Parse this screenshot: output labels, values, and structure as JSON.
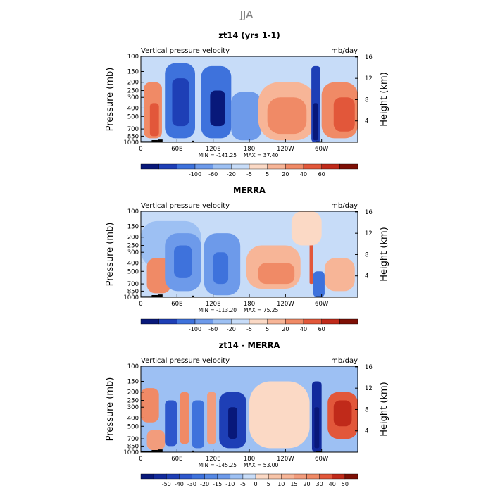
{
  "season_title": "JJA",
  "chart_data": [
    {
      "type": "heatmap",
      "title": "zt14 (yrs 1-1)",
      "left_string": "Vertical pressure velocity",
      "right_string": "mb/day",
      "ylabel": "Pressure (mb)",
      "ylabel_right": "Height (km)",
      "x_ticks": [
        "0",
        "60E",
        "120E",
        "180",
        "120W",
        "60W"
      ],
      "x_tick_lons": [
        0,
        60,
        120,
        180,
        240,
        300
      ],
      "xlim": [
        0,
        360
      ],
      "p_ticks": [
        100,
        150,
        200,
        250,
        300,
        400,
        500,
        700,
        850,
        1000
      ],
      "p_tick_labels": [
        "100",
        "150",
        "200",
        "250",
        "300",
        "400",
        "500",
        "700",
        "850",
        "1000"
      ],
      "ylim": [
        1000,
        100
      ],
      "height_ticks": [
        "4",
        "8",
        "12",
        "16"
      ],
      "height_tick_values": [
        4,
        8,
        12,
        16
      ],
      "min_label": "MIN = -141.25",
      "max_label": "MAX =  37.40",
      "levels": [
        "-100",
        "-60",
        "-20",
        "-5",
        "5",
        "20",
        "40",
        "60"
      ],
      "colors": [
        "#08187a",
        "#1e3fb6",
        "#3e72dc",
        "#6d9aea",
        "#9dc0f3",
        "#c7dcf8",
        "#fbd9c5",
        "#f7b597",
        "#f08a66",
        "#e2573a",
        "#c02a1a",
        "#7e0f05"
      ],
      "cells": [
        {
          "lon": [
            5,
            35
          ],
          "p": [
            200,
            900
          ],
          "class": 8
        },
        {
          "lon": [
            15,
            30
          ],
          "p": [
            350,
            850
          ],
          "class": 9
        },
        {
          "lon": [
            40,
            90
          ],
          "p": [
            120,
            900
          ],
          "class": 2
        },
        {
          "lon": [
            52,
            80
          ],
          "p": [
            180,
            650
          ],
          "class": 1
        },
        {
          "lon": [
            100,
            150
          ],
          "p": [
            130,
            900
          ],
          "class": 2
        },
        {
          "lon": [
            115,
            140
          ],
          "p": [
            250,
            650
          ],
          "class": 0
        },
        {
          "lon": [
            150,
            200
          ],
          "p": [
            260,
            950
          ],
          "class": 3
        },
        {
          "lon": [
            195,
            290
          ],
          "p": [
            200,
            950
          ],
          "class": 7
        },
        {
          "lon": [
            210,
            275
          ],
          "p": [
            300,
            800
          ],
          "class": 8
        },
        {
          "lon": [
            283,
            298
          ],
          "p": [
            130,
            1000
          ],
          "class": 1
        },
        {
          "lon": [
            286,
            294
          ],
          "p": [
            350,
            950
          ],
          "class": 0
        },
        {
          "lon": [
            300,
            360
          ],
          "p": [
            200,
            900
          ],
          "class": 8
        },
        {
          "lon": [
            320,
            355
          ],
          "p": [
            300,
            750
          ],
          "class": 9
        }
      ]
    },
    {
      "type": "heatmap",
      "title": "MERRA",
      "left_string": "Vertical pressure velocity",
      "right_string": "mb/day",
      "ylabel": "Pressure (mb)",
      "ylabel_right": "Height (km)",
      "x_ticks": [
        "0",
        "60E",
        "120E",
        "180",
        "120W",
        "60W"
      ],
      "x_tick_lons": [
        0,
        60,
        120,
        180,
        240,
        300
      ],
      "xlim": [
        0,
        360
      ],
      "p_ticks": [
        100,
        150,
        200,
        250,
        300,
        400,
        500,
        700,
        850,
        1000
      ],
      "p_tick_labels": [
        "100",
        "150",
        "200",
        "250",
        "300",
        "400",
        "500",
        "700",
        "850",
        "1000"
      ],
      "ylim": [
        1000,
        100
      ],
      "height_ticks": [
        "4",
        "8",
        "12",
        "16"
      ],
      "height_tick_values": [
        4,
        8,
        12,
        16
      ],
      "min_label": "MIN = -113.20",
      "max_label": "MAX =  75.25",
      "levels": [
        "-100",
        "-60",
        "-20",
        "-5",
        "5",
        "20",
        "40",
        "60"
      ],
      "colors": [
        "#08187a",
        "#1e3fb6",
        "#3e72dc",
        "#6d9aea",
        "#9dc0f3",
        "#c7dcf8",
        "#fbd9c5",
        "#f7b597",
        "#f08a66",
        "#e2573a",
        "#c02a1a",
        "#7e0f05"
      ],
      "cells": [
        {
          "lon": [
            0,
            100
          ],
          "p": [
            130,
            450
          ],
          "class": 4
        },
        {
          "lon": [
            10,
            50
          ],
          "p": [
            350,
            900
          ],
          "class": 8
        },
        {
          "lon": [
            40,
            100
          ],
          "p": [
            180,
            850
          ],
          "class": 3
        },
        {
          "lon": [
            55,
            85
          ],
          "p": [
            250,
            600
          ],
          "class": 2
        },
        {
          "lon": [
            105,
            165
          ],
          "p": [
            180,
            950
          ],
          "class": 3
        },
        {
          "lon": [
            120,
            145
          ],
          "p": [
            300,
            700
          ],
          "class": 2
        },
        {
          "lon": [
            175,
            265
          ],
          "p": [
            250,
            800
          ],
          "class": 7
        },
        {
          "lon": [
            195,
            255
          ],
          "p": [
            400,
            700
          ],
          "class": 8
        },
        {
          "lon": [
            280,
            286
          ],
          "p": [
            180,
            700
          ],
          "class": 9
        },
        {
          "lon": [
            286,
            305
          ],
          "p": [
            500,
            1000
          ],
          "class": 2
        },
        {
          "lon": [
            305,
            355
          ],
          "p": [
            350,
            850
          ],
          "class": 7
        },
        {
          "lon": [
            250,
            300
          ],
          "p": [
            100,
            250
          ],
          "class": 6
        }
      ]
    },
    {
      "type": "heatmap",
      "title": "zt14 - MERRA",
      "left_string": "Vertical pressure velocity",
      "right_string": "mb/day",
      "ylabel": "Pressure (mb)",
      "ylabel_right": "Height (km)",
      "x_ticks": [
        "0",
        "60E",
        "120E",
        "180",
        "120W",
        "60W"
      ],
      "x_tick_lons": [
        0,
        60,
        120,
        180,
        240,
        300
      ],
      "xlim": [
        0,
        360
      ],
      "p_ticks": [
        100,
        150,
        200,
        250,
        300,
        400,
        500,
        700,
        850,
        1000
      ],
      "p_tick_labels": [
        "100",
        "150",
        "200",
        "250",
        "300",
        "400",
        "500",
        "700",
        "850",
        "1000"
      ],
      "ylim": [
        1000,
        100
      ],
      "height_ticks": [
        "4",
        "8",
        "12",
        "16"
      ],
      "height_tick_values": [
        4,
        8,
        12,
        16
      ],
      "min_label": "MIN = -145.25",
      "max_label": "MAX =  53.00",
      "levels": [
        "-50",
        "-40",
        "-30",
        "-20",
        "-15",
        "-10",
        "-5",
        "0",
        "5",
        "10",
        "15",
        "20",
        "30",
        "40",
        "50"
      ],
      "colors": [
        "#08187a",
        "#122a9c",
        "#1e3fb6",
        "#2e57cc",
        "#3e72dc",
        "#5588e4",
        "#6d9aea",
        "#9dc0f3",
        "#c7dcf8",
        "#fbd9c5",
        "#f7c4a8",
        "#f7b597",
        "#f29c7c",
        "#f08a66",
        "#e2573a",
        "#c02a1a",
        "#7e0f05"
      ],
      "cells": [
        {
          "lon": [
            0,
            30
          ],
          "p": [
            180,
            450
          ],
          "class": 13
        },
        {
          "lon": [
            10,
            40
          ],
          "p": [
            550,
            950
          ],
          "class": 12
        },
        {
          "lon": [
            40,
            60
          ],
          "p": [
            250,
            850
          ],
          "class": 3
        },
        {
          "lon": [
            65,
            80
          ],
          "p": [
            200,
            800
          ],
          "class": 13
        },
        {
          "lon": [
            85,
            105
          ],
          "p": [
            250,
            900
          ],
          "class": 4
        },
        {
          "lon": [
            110,
            125
          ],
          "p": [
            200,
            800
          ],
          "class": 12
        },
        {
          "lon": [
            130,
            175
          ],
          "p": [
            200,
            900
          ],
          "class": 2
        },
        {
          "lon": [
            145,
            160
          ],
          "p": [
            300,
            700
          ],
          "class": 0
        },
        {
          "lon": [
            180,
            280
          ],
          "p": [
            150,
            900
          ],
          "class": 9
        },
        {
          "lon": [
            284,
            300
          ],
          "p": [
            150,
            1000
          ],
          "class": 1
        },
        {
          "lon": [
            288,
            296
          ],
          "p": [
            300,
            900
          ],
          "class": 0
        },
        {
          "lon": [
            310,
            360
          ],
          "p": [
            200,
            700
          ],
          "class": 14
        },
        {
          "lon": [
            320,
            350
          ],
          "p": [
            250,
            500
          ],
          "class": 15
        }
      ]
    }
  ]
}
